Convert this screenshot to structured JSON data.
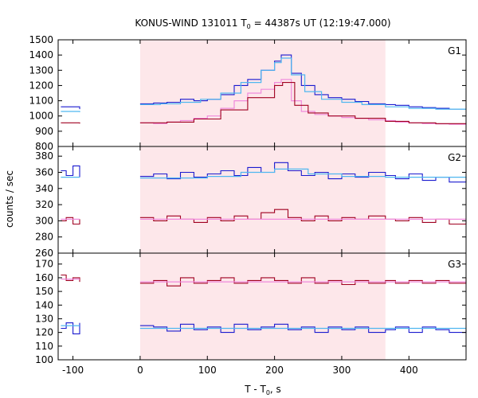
{
  "chart_data": {
    "type": "line",
    "title_main": "KONUS-WIND 131011 T",
    "title_sub": "0",
    "title_rest": " = 44387s UT (12:19:47.000)",
    "xlabel_main": "T - T",
    "xlabel_sub": "0",
    "xlabel_rest": ", s",
    "ylabel": "counts / sec",
    "xlim": [
      -122,
      485
    ],
    "xticks": [
      -100,
      0,
      100,
      200,
      300,
      400
    ],
    "highlight": {
      "x0": 0,
      "x1": 365,
      "color": "#fde7ea"
    },
    "colors": {
      "primary": "#1a1acf",
      "primary_fit": "#4fb7f0",
      "secondary": "#a00020",
      "secondary_fit": "#f08adc"
    },
    "panels": [
      {
        "name": "G1",
        "ylim": [
          800,
          1500
        ],
        "yticks": [
          800,
          900,
          1000,
          1100,
          1200,
          1300,
          1400,
          1500
        ],
        "series": [
          {
            "values": [
              [
                -118,
                1060
              ],
              [
                -90,
                1045
              ]
            ]
          },
          {
            "values": [
              [
                -118,
                1030
              ],
              [
                -90,
                1025
              ]
            ]
          },
          {
            "values": [
              [
                0,
                1080
              ],
              [
                20,
                1085
              ],
              [
                40,
                1090
              ],
              [
                60,
                1110
              ],
              [
                80,
                1100
              ],
              [
                100,
                1110
              ],
              [
                120,
                1140
              ],
              [
                140,
                1200
              ],
              [
                160,
                1240
              ],
              [
                180,
                1300
              ],
              [
                200,
                1360
              ],
              [
                210,
                1400
              ],
              [
                225,
                1280
              ],
              [
                240,
                1200
              ],
              [
                260,
                1140
              ],
              [
                280,
                1120
              ],
              [
                300,
                1110
              ],
              [
                320,
                1095
              ],
              [
                340,
                1080
              ],
              [
                365,
                1075
              ],
              [
                380,
                1070
              ],
              [
                400,
                1060
              ],
              [
                420,
                1055
              ],
              [
                440,
                1050
              ],
              [
                460,
                1045
              ],
              [
                485,
                1045
              ]
            ]
          },
          {
            "values": [
              [
                0,
                1075
              ],
              [
                30,
                1080
              ],
              [
                60,
                1090
              ],
              [
                90,
                1110
              ],
              [
                120,
                1150
              ],
              [
                150,
                1220
              ],
              [
                180,
                1300
              ],
              [
                200,
                1350
              ],
              [
                210,
                1380
              ],
              [
                225,
                1270
              ],
              [
                245,
                1160
              ],
              [
                270,
                1110
              ],
              [
                300,
                1090
              ],
              [
                330,
                1075
              ],
              [
                365,
                1060
              ],
              [
                400,
                1050
              ],
              [
                440,
                1045
              ],
              [
                485,
                1045
              ]
            ]
          },
          {
            "values": [
              [
                -118,
                955
              ],
              [
                -90,
                950
              ]
            ]
          },
          {
            "values": [
              [
                0,
                955
              ],
              [
                20,
                950
              ],
              [
                40,
                960
              ],
              [
                60,
                970
              ],
              [
                80,
                985
              ],
              [
                100,
                1000
              ],
              [
                120,
                1050
              ],
              [
                140,
                1100
              ],
              [
                160,
                1150
              ],
              [
                180,
                1175
              ],
              [
                200,
                1220
              ],
              [
                210,
                1240
              ],
              [
                225,
                1100
              ],
              [
                240,
                1030
              ],
              [
                260,
                1010
              ],
              [
                280,
                1000
              ],
              [
                300,
                990
              ],
              [
                320,
                985
              ],
              [
                340,
                975
              ],
              [
                365,
                970
              ],
              [
                380,
                960
              ],
              [
                400,
                955
              ],
              [
                420,
                950
              ],
              [
                440,
                948
              ],
              [
                460,
                945
              ],
              [
                485,
                945
              ]
            ]
          },
          {
            "values": [
              [
                0,
                955
              ],
              [
                40,
                960
              ],
              [
                80,
                980
              ],
              [
                120,
                1040
              ],
              [
                160,
                1120
              ],
              [
                200,
                1200
              ],
              [
                212,
                1220
              ],
              [
                230,
                1070
              ],
              [
                250,
                1020
              ],
              [
                280,
                1000
              ],
              [
                320,
                985
              ],
              [
                365,
                965
              ],
              [
                400,
                955
              ],
              [
                440,
                950
              ],
              [
                485,
                948
              ]
            ]
          }
        ]
      },
      {
        "name": "G2",
        "ylim": [
          260,
          392
        ],
        "yticks": [
          260,
          280,
          300,
          320,
          340,
          360,
          380
        ],
        "series": [
          {
            "values": [
              [
                -118,
                362
              ],
              [
                -110,
                356
              ],
              [
                -100,
                368
              ],
              [
                -90,
                354
              ]
            ]
          },
          {
            "values": [
              [
                -118,
                354
              ],
              [
                -90,
                354
              ]
            ]
          },
          {
            "values": [
              [
                0,
                355
              ],
              [
                20,
                358
              ],
              [
                40,
                352
              ],
              [
                60,
                360
              ],
              [
                80,
                354
              ],
              [
                100,
                358
              ],
              [
                120,
                362
              ],
              [
                140,
                356
              ],
              [
                160,
                366
              ],
              [
                180,
                360
              ],
              [
                200,
                372
              ],
              [
                220,
                362
              ],
              [
                240,
                356
              ],
              [
                260,
                360
              ],
              [
                280,
                352
              ],
              [
                300,
                358
              ],
              [
                320,
                354
              ],
              [
                340,
                360
              ],
              [
                365,
                356
              ],
              [
                380,
                352
              ],
              [
                400,
                358
              ],
              [
                420,
                350
              ],
              [
                440,
                354
              ],
              [
                460,
                348
              ],
              [
                485,
                352
              ]
            ]
          },
          {
            "values": [
              [
                0,
                353
              ],
              [
                100,
                355
              ],
              [
                150,
                360
              ],
              [
                200,
                364
              ],
              [
                250,
                358
              ],
              [
                300,
                355
              ],
              [
                365,
                354
              ],
              [
                485,
                353
              ]
            ]
          },
          {
            "values": [
              [
                -118,
                300
              ],
              [
                -110,
                304
              ],
              [
                -100,
                296
              ],
              [
                -90,
                302
              ]
            ]
          },
          {
            "values": [
              [
                -118,
                302
              ],
              [
                -90,
                302
              ]
            ]
          },
          {
            "values": [
              [
                0,
                304
              ],
              [
                20,
                300
              ],
              [
                40,
                306
              ],
              [
                60,
                302
              ],
              [
                80,
                298
              ],
              [
                100,
                304
              ],
              [
                120,
                300
              ],
              [
                140,
                306
              ],
              [
                160,
                302
              ],
              [
                180,
                310
              ],
              [
                200,
                314
              ],
              [
                220,
                304
              ],
              [
                240,
                300
              ],
              [
                260,
                306
              ],
              [
                280,
                300
              ],
              [
                300,
                304
              ],
              [
                320,
                302
              ],
              [
                340,
                306
              ],
              [
                365,
                302
              ],
              [
                380,
                300
              ],
              [
                400,
                304
              ],
              [
                420,
                298
              ],
              [
                440,
                302
              ],
              [
                460,
                296
              ],
              [
                485,
                300
              ]
            ]
          },
          {
            "values": [
              [
                0,
                302
              ],
              [
                485,
                302
              ]
            ]
          }
        ]
      },
      {
        "name": "G3",
        "ylim": [
          100,
          178
        ],
        "yticks": [
          100,
          110,
          120,
          130,
          140,
          150,
          160,
          170
        ],
        "series": [
          {
            "values": [
              [
                -118,
                123
              ],
              [
                -110,
                127
              ],
              [
                -100,
                119
              ],
              [
                -90,
                127
              ]
            ]
          },
          {
            "values": [
              [
                -118,
                125
              ],
              [
                -90,
                125
              ]
            ]
          },
          {
            "values": [
              [
                0,
                125
              ],
              [
                20,
                124
              ],
              [
                40,
                121
              ],
              [
                60,
                126
              ],
              [
                80,
                122
              ],
              [
                100,
                124
              ],
              [
                120,
                120
              ],
              [
                140,
                126
              ],
              [
                160,
                122
              ],
              [
                180,
                124
              ],
              [
                200,
                126
              ],
              [
                220,
                122
              ],
              [
                240,
                124
              ],
              [
                260,
                120
              ],
              [
                280,
                124
              ],
              [
                300,
                122
              ],
              [
                320,
                124
              ],
              [
                340,
                120
              ],
              [
                365,
                122
              ],
              [
                380,
                124
              ],
              [
                400,
                120
              ],
              [
                420,
                124
              ],
              [
                440,
                122
              ],
              [
                460,
                120
              ],
              [
                485,
                122
              ]
            ]
          },
          {
            "values": [
              [
                0,
                123
              ],
              [
                485,
                123
              ]
            ]
          },
          {
            "values": [
              [
                -118,
                162
              ],
              [
                -110,
                158
              ],
              [
                -100,
                160
              ],
              [
                -90,
                157
              ]
            ]
          },
          {
            "values": [
              [
                -118,
                159
              ],
              [
                -90,
                159
              ]
            ]
          },
          {
            "values": [
              [
                0,
                156
              ],
              [
                20,
                158
              ],
              [
                40,
                154
              ],
              [
                60,
                160
              ],
              [
                80,
                156
              ],
              [
                100,
                158
              ],
              [
                120,
                160
              ],
              [
                140,
                156
              ],
              [
                160,
                158
              ],
              [
                180,
                160
              ],
              [
                200,
                158
              ],
              [
                220,
                156
              ],
              [
                240,
                160
              ],
              [
                260,
                156
              ],
              [
                280,
                158
              ],
              [
                300,
                155
              ],
              [
                320,
                158
              ],
              [
                340,
                156
              ],
              [
                365,
                158
              ],
              [
                380,
                156
              ],
              [
                400,
                158
              ],
              [
                420,
                156
              ],
              [
                440,
                158
              ],
              [
                460,
                156
              ],
              [
                485,
                160
              ]
            ]
          },
          {
            "values": [
              [
                0,
                157
              ],
              [
                485,
                157
              ]
            ]
          }
        ]
      }
    ]
  }
}
